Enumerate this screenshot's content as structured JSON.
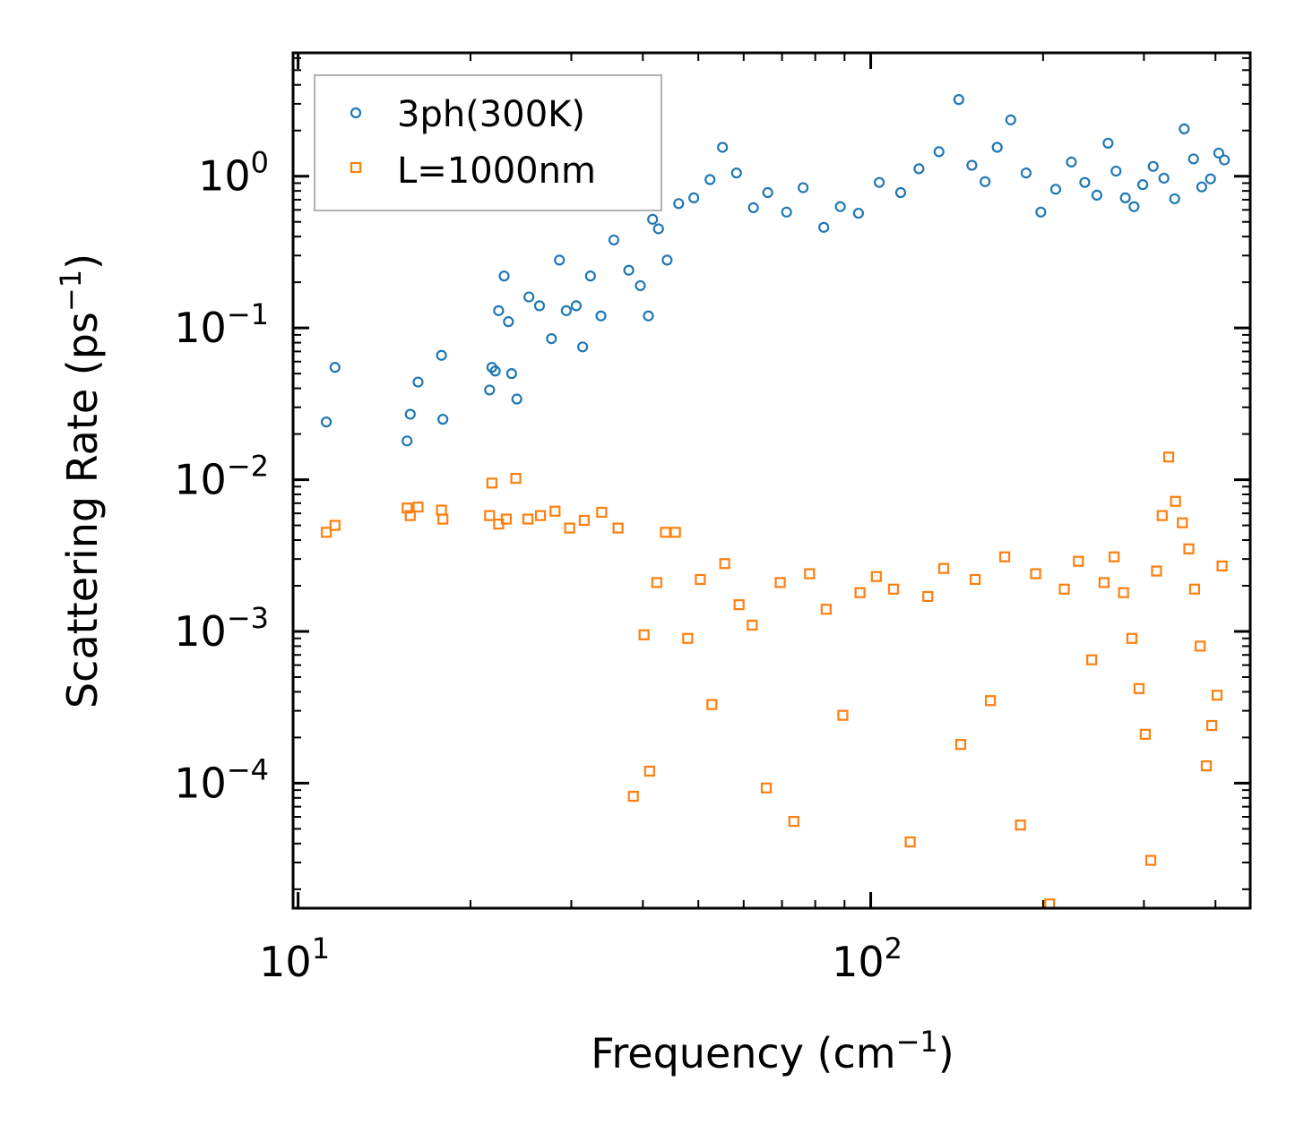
{
  "chart_data": {
    "type": "scatter",
    "title": "",
    "xlabel": "Frequency (cm",
    "xlabel_sup": "−1",
    "xlabel_tail": ")",
    "ylabel": "Scattering Rate (ps",
    "ylabel_sup": "−1",
    "ylabel_tail": ")",
    "xscale": "log",
    "yscale": "log",
    "xlim": [
      9.8,
      460
    ],
    "ylim": [
      1.5e-05,
      6.5
    ],
    "x_ticks": [
      {
        "value": 10,
        "base": "10",
        "exp": "1"
      },
      {
        "value": 100,
        "base": "10",
        "exp": "2"
      }
    ],
    "y_ticks": [
      {
        "value": 1,
        "base": "10",
        "exp": "0"
      },
      {
        "value": 0.1,
        "base": "10",
        "exp": "−1"
      },
      {
        "value": 0.01,
        "base": "10",
        "exp": "−2"
      },
      {
        "value": 0.001,
        "base": "10",
        "exp": "−3"
      },
      {
        "value": 0.0001,
        "base": "10",
        "exp": "−4"
      }
    ],
    "legend_position": "top-left",
    "series": [
      {
        "name": "3ph(300K)",
        "marker": "circle",
        "color": "#1f77b4",
        "x": [
          11.2,
          11.6,
          15.5,
          15.7,
          16.2,
          17.8,
          17.9,
          21.6,
          21.8,
          22.1,
          22.4,
          22.9,
          23.3,
          23.6,
          24.1,
          25.3,
          26.4,
          27.7,
          28.6,
          29.4,
          30.6,
          31.4,
          32.4,
          33.8,
          35.6,
          37.8,
          39.6,
          40.9,
          41.6,
          42.6,
          44.1,
          46.2,
          49.1,
          52.4,
          55.1,
          58.3,
          62.4,
          66.1,
          71.3,
          76.2,
          82.8,
          88.5,
          95.2,
          103.5,
          112.8,
          121.4,
          131.6,
          142.5,
          150.2,
          158.4,
          166.3,
          175.6,
          186.8,
          198.2,
          210.4,
          224.1,
          236.5,
          248.3,
          259.7,
          268.2,
          278.4,
          288.3,
          298.6,
          311.4,
          325.1,
          339.5,
          352.8,
          366.2,
          378.5,
          392.1,
          405.3,
          414.6
        ],
        "y": [
          0.024,
          0.055,
          0.018,
          0.027,
          0.044,
          0.066,
          0.025,
          0.039,
          0.055,
          0.052,
          0.13,
          0.22,
          0.11,
          0.05,
          0.034,
          0.16,
          0.14,
          0.085,
          0.28,
          0.13,
          0.14,
          0.075,
          0.22,
          0.12,
          0.38,
          0.24,
          0.19,
          0.12,
          0.52,
          0.45,
          0.28,
          0.66,
          0.72,
          0.95,
          1.55,
          1.05,
          0.62,
          0.78,
          0.58,
          0.84,
          0.46,
          0.63,
          0.57,
          0.91,
          0.78,
          1.12,
          1.45,
          3.2,
          1.18,
          0.92,
          1.55,
          2.35,
          1.05,
          0.58,
          0.82,
          1.24,
          0.91,
          0.75,
          1.65,
          1.08,
          0.72,
          0.63,
          0.88,
          1.16,
          0.97,
          0.71,
          2.05,
          1.3,
          0.85,
          0.96,
          1.42,
          1.28
        ]
      },
      {
        "name": "L=1000nm",
        "marker": "square",
        "color": "#ff7f0e",
        "x": [
          11.2,
          11.6,
          15.5,
          15.7,
          16.2,
          17.8,
          17.9,
          21.6,
          21.8,
          22.4,
          23.1,
          24.0,
          25.2,
          26.5,
          28.1,
          29.8,
          31.6,
          33.9,
          36.2,
          38.5,
          40.2,
          41.1,
          42.3,
          43.8,
          45.6,
          47.9,
          50.4,
          52.8,
          55.6,
          58.9,
          62.1,
          65.7,
          69.5,
          73.4,
          78.2,
          83.6,
          89.4,
          95.8,
          102.3,
          109.6,
          117.2,
          125.8,
          134.1,
          143.6,
          152.2,
          161.8,
          171.4,
          182.6,
          194.1,
          205.3,
          217.8,
          230.5,
          243.2,
          255.6,
          266.1,
          276.4,
          285.8,
          294.2,
          301.6,
          308.4,
          315.6,
          322.9,
          331.4,
          340.6,
          350.1,
          359.4,
          367.8,
          376.2,
          385.5,
          394.1,
          402.6,
          410.8
        ],
        "y": [
          0.0045,
          0.005,
          0.0065,
          0.0058,
          0.0066,
          0.0063,
          0.0055,
          0.0058,
          0.0095,
          0.0051,
          0.0055,
          0.0102,
          0.0055,
          0.0058,
          0.0062,
          0.0048,
          0.0054,
          0.0061,
          0.0048,
          8.2e-05,
          0.00095,
          0.00012,
          0.0021,
          0.0045,
          0.0045,
          0.0009,
          0.0022,
          0.00033,
          0.0028,
          0.0015,
          0.0011,
          9.3e-05,
          0.0021,
          5.6e-05,
          0.0024,
          0.0014,
          0.00028,
          0.0018,
          0.0023,
          0.0019,
          4.1e-05,
          0.0017,
          0.0026,
          0.00018,
          0.0022,
          0.00035,
          0.0031,
          5.3e-05,
          0.0024,
          1.6e-05,
          0.0019,
          0.0029,
          0.00065,
          0.0021,
          0.0031,
          0.0018,
          0.0009,
          0.00042,
          0.00021,
          3.1e-05,
          0.0025,
          0.0058,
          0.0141,
          0.0072,
          0.0052,
          0.0035,
          0.0019,
          0.0008,
          0.00013,
          0.00024,
          0.00038,
          0.0027
        ]
      }
    ]
  }
}
